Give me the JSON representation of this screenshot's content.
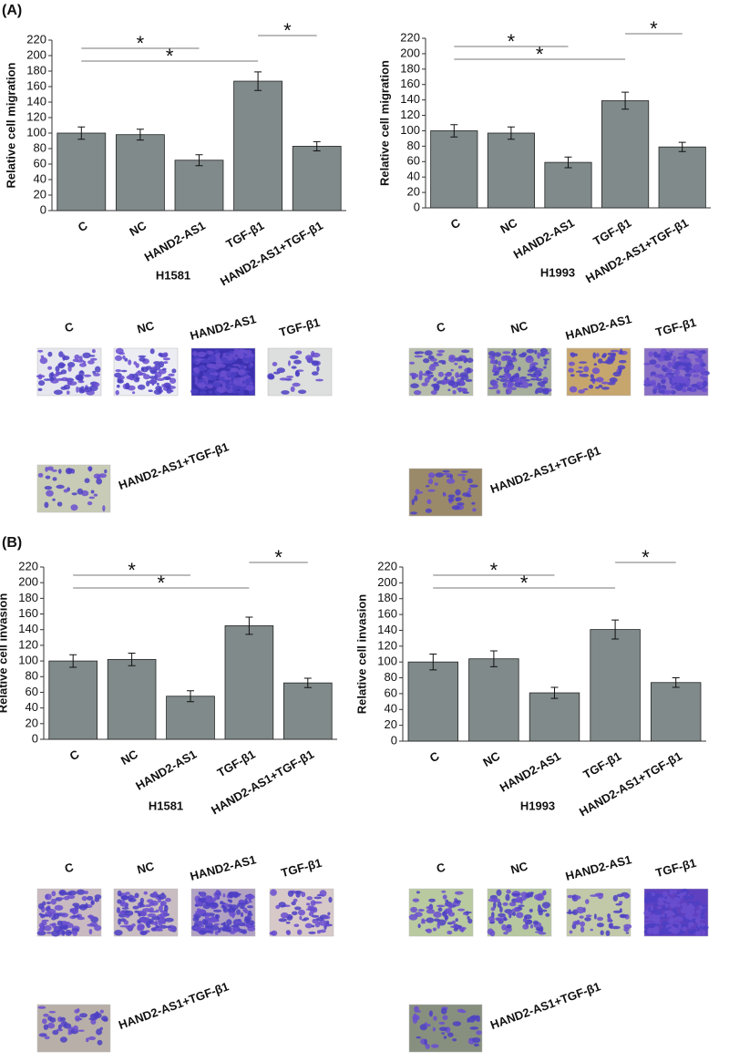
{
  "panel_labels": [
    "(A)",
    "(B)"
  ],
  "chart_data": [
    {
      "type": "bar",
      "title": "H1581",
      "y_label": "Relative cell migration",
      "categories": [
        "C",
        "NC",
        "HAND2-AS1",
        "TGF-β1",
        "HAND2-AS1+TGF-β1"
      ],
      "values": [
        100,
        98,
        65,
        167,
        83
      ],
      "errors": [
        8,
        7,
        7,
        12,
        6
      ],
      "color": "#808a8a",
      "ylim": [
        0,
        220
      ],
      "yticks": [
        0,
        20,
        40,
        60,
        80,
        100,
        120,
        140,
        160,
        180,
        200,
        220
      ],
      "significance": [
        {
          "between": [
            "C",
            "HAND2-AS1"
          ],
          "label": "*"
        },
        {
          "between": [
            "C",
            "TGF-β1"
          ],
          "label": "*"
        },
        {
          "between": [
            "TGF-β1",
            "HAND2-AS1+TGF-β1"
          ],
          "label": "*"
        }
      ]
    },
    {
      "type": "bar",
      "title": "H1993",
      "y_label": "Relative cell migration",
      "categories": [
        "C",
        "NC",
        "HAND2-AS1",
        "TGF-β1",
        "HAND2-AS1+TGF-β1"
      ],
      "values": [
        100,
        97,
        59,
        139,
        79
      ],
      "errors": [
        8,
        8,
        7,
        11,
        6
      ],
      "color": "#808a8a",
      "ylim": [
        0,
        220
      ],
      "yticks": [
        0,
        20,
        40,
        60,
        80,
        100,
        120,
        140,
        160,
        180,
        200,
        220
      ],
      "significance": [
        {
          "between": [
            "C",
            "HAND2-AS1"
          ],
          "label": "*"
        },
        {
          "between": [
            "C",
            "TGF-β1"
          ],
          "label": "*"
        },
        {
          "between": [
            "TGF-β1",
            "HAND2-AS1+TGF-β1"
          ],
          "label": "*"
        }
      ]
    },
    {
      "type": "bar",
      "title": "H1581",
      "y_label": "Relative cell invasion",
      "categories": [
        "C",
        "NC",
        "HAND2-AS1",
        "TGF-β1",
        "HAND2-AS1+TGF-β1"
      ],
      "values": [
        100,
        102,
        55,
        145,
        72
      ],
      "errors": [
        8,
        8,
        7,
        11,
        6
      ],
      "color": "#808a8a",
      "ylim": [
        0,
        220
      ],
      "yticks": [
        0,
        20,
        40,
        60,
        80,
        100,
        120,
        140,
        160,
        180,
        200,
        220
      ],
      "significance": [
        {
          "between": [
            "C",
            "HAND2-AS1"
          ],
          "label": "*"
        },
        {
          "between": [
            "C",
            "TGF-β1"
          ],
          "label": "*"
        },
        {
          "between": [
            "TGF-β1",
            "HAND2-AS1+TGF-β1"
          ],
          "label": "*"
        }
      ]
    },
    {
      "type": "bar",
      "title": "H1993",
      "y_label": "Relative cell invasion",
      "categories": [
        "C",
        "NC",
        "HAND2-AS1",
        "TGF-β1",
        "HAND2-AS1+TGF-β1"
      ],
      "values": [
        100,
        104,
        61,
        141,
        74
      ],
      "errors": [
        10,
        10,
        7,
        12,
        6
      ],
      "color": "#808a8a",
      "ylim": [
        0,
        220
      ],
      "yticks": [
        0,
        20,
        40,
        60,
        80,
        100,
        120,
        140,
        160,
        180,
        200,
        220
      ],
      "significance": [
        {
          "between": [
            "C",
            "HAND2-AS1"
          ],
          "label": "*"
        },
        {
          "between": [
            "C",
            "TGF-β1"
          ],
          "label": "*"
        },
        {
          "between": [
            "TGF-β1",
            "HAND2-AS1+TGF-β1"
          ],
          "label": "*"
        }
      ]
    }
  ]
}
